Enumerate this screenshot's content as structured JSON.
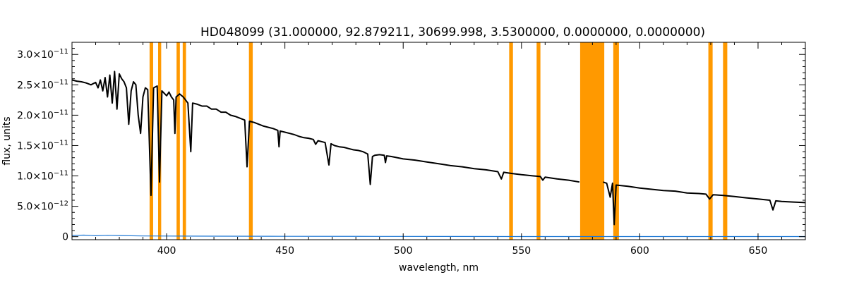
{
  "chart_data": {
    "type": "line",
    "title": "HD048099    (31.000000, 92.879211, 30699.998, 3.5300000, 0.0000000, 0.0000000)",
    "xlabel": "wavelength, nm",
    "ylabel": "flux, units",
    "xlim": [
      360,
      670
    ],
    "ylim": [
      -5e-13,
      3.2e-11
    ],
    "x_ticks": [
      {
        "value": 400,
        "label": "400"
      },
      {
        "value": 450,
        "label": "450"
      },
      {
        "value": 500,
        "label": "500"
      },
      {
        "value": 550,
        "label": "550"
      },
      {
        "value": 600,
        "label": "600"
      },
      {
        "value": 650,
        "label": "650"
      }
    ],
    "y_ticks": [
      {
        "value": 0,
        "mant": "0",
        "exp": ""
      },
      {
        "value": 5e-12,
        "mant": "5.0×10",
        "exp": "−12"
      },
      {
        "value": 1e-11,
        "mant": "1.0×10",
        "exp": "−11"
      },
      {
        "value": 1.5e-11,
        "mant": "1.5×10",
        "exp": "−11"
      },
      {
        "value": 2e-11,
        "mant": "2.0×10",
        "exp": "−11"
      },
      {
        "value": 2.5e-11,
        "mant": "2.5×10",
        "exp": "−11"
      },
      {
        "value": 3e-11,
        "mant": "3.0×10",
        "exp": "−11"
      }
    ],
    "masked_bands": [
      {
        "x0": 392.8,
        "x1": 394.3
      },
      {
        "x0": 396.4,
        "x1": 397.7
      },
      {
        "x0": 404.2,
        "x1": 405.6
      },
      {
        "x0": 406.8,
        "x1": 408.2
      },
      {
        "x0": 434.8,
        "x1": 436.4
      },
      {
        "x0": 544.8,
        "x1": 546.4
      },
      {
        "x0": 556.4,
        "x1": 558.0
      },
      {
        "x0": 574.8,
        "x1": 585.0
      },
      {
        "x0": 588.8,
        "x1": 591.2
      },
      {
        "x0": 629.0,
        "x1": 630.8
      },
      {
        "x0": 635.2,
        "x1": 637.0
      }
    ],
    "series": [
      {
        "color": "#000000",
        "points": [
          [
            360,
            2.58e-11
          ],
          [
            362,
            2.56e-11
          ],
          [
            364,
            2.55e-11
          ],
          [
            366,
            2.53e-11
          ],
          [
            368,
            2.5e-11
          ],
          [
            370,
            2.54e-11
          ],
          [
            371,
            2.45e-11
          ],
          [
            372,
            2.58e-11
          ],
          [
            373,
            2.4e-11
          ],
          [
            374,
            2.62e-11
          ],
          [
            375,
            2.3e-11
          ],
          [
            376,
            2.66e-11
          ],
          [
            377,
            2.2e-11
          ],
          [
            378,
            2.72e-11
          ],
          [
            379,
            2.1e-11
          ],
          [
            380,
            2.68e-11
          ],
          [
            381,
            2.6e-11
          ],
          [
            382,
            2.55e-11
          ],
          [
            383,
            2.45e-11
          ],
          [
            384,
            1.85e-11
          ],
          [
            385,
            2.4e-11
          ],
          [
            386,
            2.55e-11
          ],
          [
            387,
            2.5e-11
          ],
          [
            388,
            2e-11
          ],
          [
            389,
            1.7e-11
          ],
          [
            390,
            2.3e-11
          ],
          [
            391,
            2.45e-11
          ],
          [
            392,
            2.42e-11
          ],
          [
            393.4,
            6.8e-12
          ],
          [
            394.5,
            2.45e-11
          ],
          [
            396,
            2.48e-11
          ],
          [
            397.0,
            9e-12
          ],
          [
            398,
            2.4e-11
          ],
          [
            400,
            2.32e-11
          ],
          [
            401,
            2.38e-11
          ],
          [
            402,
            2.3e-11
          ],
          [
            403,
            2.25e-11
          ],
          [
            403.5,
            1.7e-11
          ],
          [
            404,
            2.3e-11
          ],
          [
            405.5,
            2.35e-11
          ],
          [
            407,
            2.3e-11
          ],
          [
            408,
            2.25e-11
          ],
          [
            409,
            2.2e-11
          ],
          [
            410.2,
            1.4e-11
          ],
          [
            411,
            2.2e-11
          ],
          [
            413,
            2.18e-11
          ],
          [
            415,
            2.15e-11
          ],
          [
            417,
            2.15e-11
          ],
          [
            419,
            2.1e-11
          ],
          [
            421,
            2.1e-11
          ],
          [
            423,
            2.05e-11
          ],
          [
            425,
            2.05e-11
          ],
          [
            427,
            2e-11
          ],
          [
            429,
            1.98e-11
          ],
          [
            431,
            1.95e-11
          ],
          [
            433,
            1.92e-11
          ],
          [
            434.0,
            1.15e-11
          ],
          [
            435,
            1.9e-11
          ],
          [
            437,
            1.88e-11
          ],
          [
            439,
            1.85e-11
          ],
          [
            441,
            1.82e-11
          ],
          [
            443,
            1.8e-11
          ],
          [
            445,
            1.78e-11
          ],
          [
            447,
            1.75e-11
          ],
          [
            447.5,
            1.48e-11
          ],
          [
            448,
            1.74e-11
          ],
          [
            450,
            1.72e-11
          ],
          [
            452,
            1.7e-11
          ],
          [
            454,
            1.68e-11
          ],
          [
            456,
            1.65e-11
          ],
          [
            458,
            1.63e-11
          ],
          [
            460,
            1.62e-11
          ],
          [
            462,
            1.6e-11
          ],
          [
            463,
            1.52e-11
          ],
          [
            464,
            1.58e-11
          ],
          [
            466,
            1.56e-11
          ],
          [
            467,
            1.55e-11
          ],
          [
            468.6,
            1.18e-11
          ],
          [
            469.5,
            1.53e-11
          ],
          [
            471,
            1.5e-11
          ],
          [
            473,
            1.48e-11
          ],
          [
            475,
            1.47e-11
          ],
          [
            477,
            1.45e-11
          ],
          [
            479,
            1.43e-11
          ],
          [
            481,
            1.42e-11
          ],
          [
            483,
            1.4e-11
          ],
          [
            485,
            1.36e-11
          ],
          [
            486.1,
            8.6e-12
          ],
          [
            487,
            1.32e-11
          ],
          [
            488,
            1.34e-11
          ],
          [
            490,
            1.35e-11
          ],
          [
            492,
            1.34e-11
          ],
          [
            492.5,
            1.22e-11
          ],
          [
            493,
            1.33e-11
          ],
          [
            495,
            1.32e-11
          ],
          [
            500,
            1.28e-11
          ],
          [
            505,
            1.26e-11
          ],
          [
            510,
            1.23e-11
          ],
          [
            515,
            1.2e-11
          ],
          [
            520,
            1.17e-11
          ],
          [
            525,
            1.15e-11
          ],
          [
            530,
            1.12e-11
          ],
          [
            535,
            1.1e-11
          ],
          [
            540,
            1.07e-11
          ],
          [
            541.5,
            9.5e-12
          ],
          [
            542.5,
            1.06e-11
          ],
          [
            546,
            1.04e-11
          ],
          [
            550,
            1.02e-11
          ],
          [
            555,
            1e-11
          ],
          [
            558,
            9.9e-12
          ],
          [
            559,
            9.3e-12
          ],
          [
            560,
            9.8e-12
          ],
          [
            565,
            9.5e-12
          ],
          [
            570,
            9.3e-12
          ],
          [
            574.5,
            9e-12
          ],
          null,
          [
            584.5,
            9e-12
          ],
          [
            586,
            8.8e-12
          ],
          [
            587.5,
            6.5e-12
          ],
          [
            588.5,
            8.8e-12
          ],
          [
            589.2,
            2e-12
          ],
          [
            590,
            8.5e-12
          ],
          [
            595,
            8.3e-12
          ],
          [
            600,
            8e-12
          ],
          [
            605,
            7.8e-12
          ],
          [
            610,
            7.6e-12
          ],
          [
            615,
            7.5e-12
          ],
          [
            620,
            7.2e-12
          ],
          [
            625,
            7.1e-12
          ],
          [
            628,
            7e-12
          ],
          [
            629.5,
            6.2e-12
          ],
          [
            631,
            6.9e-12
          ],
          [
            635,
            6.8e-12
          ],
          [
            640,
            6.6e-12
          ],
          [
            645,
            6.4e-12
          ],
          [
            650,
            6.2e-12
          ],
          [
            655,
            6e-12
          ],
          [
            656.3,
            4.4e-12
          ],
          [
            657.5,
            5.9e-12
          ],
          [
            660,
            5.8e-12
          ],
          [
            665,
            5.7e-12
          ],
          [
            670,
            5.6e-12
          ]
        ]
      },
      {
        "color": "#1f78d4",
        "points": [
          [
            360,
            2e-13
          ],
          [
            365,
            2.5e-13
          ],
          [
            370,
            1.5e-13
          ],
          [
            375,
            2.2e-13
          ],
          [
            380,
            1.8e-13
          ],
          [
            390,
            1.2e-13
          ],
          [
            400,
            1e-13
          ],
          [
            420,
            8e-14
          ],
          [
            450,
            6e-14
          ],
          [
            490,
            4e-14
          ],
          [
            550,
            2e-14
          ],
          [
            600,
            2e-14
          ],
          [
            670,
            2e-14
          ]
        ]
      }
    ]
  }
}
